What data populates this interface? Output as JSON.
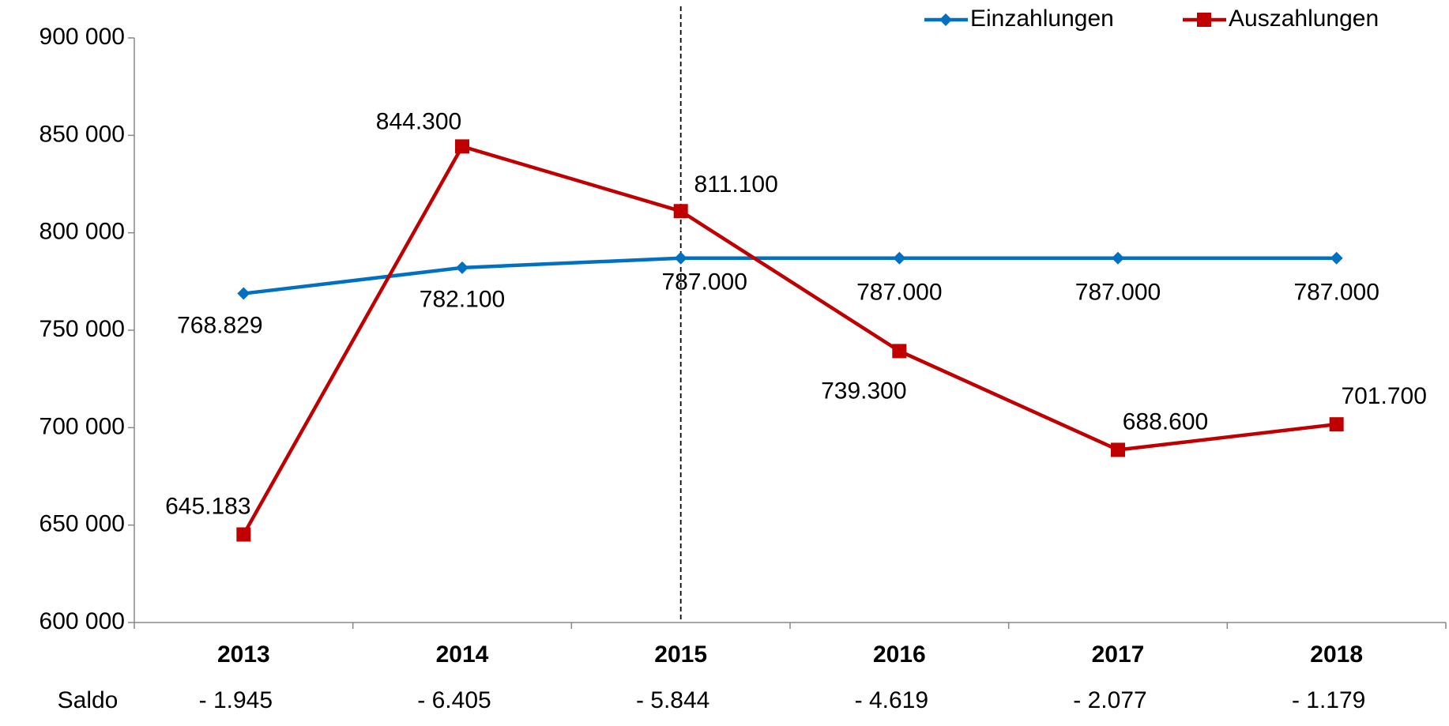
{
  "chart_data": {
    "type": "line",
    "categories": [
      "2013",
      "2014",
      "2015",
      "2016",
      "2017",
      "2018"
    ],
    "series": [
      {
        "name": "Einzahlungen",
        "color": "#0070c0",
        "marker": "diamond",
        "values": [
          768829,
          782100,
          787000,
          787000,
          787000,
          787000
        ],
        "value_labels": [
          "768.829",
          "782.100",
          "787.000",
          "787.000",
          "787.000",
          "787.000"
        ]
      },
      {
        "name": "Auszahlungen",
        "color": "#c00000",
        "marker": "square",
        "values": [
          645183,
          844300,
          811100,
          739300,
          688600,
          701700
        ],
        "value_labels": [
          "645.183",
          "844.300",
          "811.100",
          "739.300",
          "688.600",
          "701.700"
        ]
      }
    ],
    "ylim": [
      600000,
      900000
    ],
    "yticks": [
      {
        "value": 600000,
        "label": "600 000"
      },
      {
        "value": 650000,
        "label": "650 000"
      },
      {
        "value": 700000,
        "label": "700 000"
      },
      {
        "value": 750000,
        "label": "750 000"
      },
      {
        "value": 800000,
        "label": "800 000"
      },
      {
        "value": 850000,
        "label": "850 000"
      },
      {
        "value": 900000,
        "label": "900 000"
      }
    ],
    "reference_category": "2015",
    "legend": "top-right",
    "saldo": {
      "label": "Saldo",
      "values": [
        -1945,
        -6405,
        -5844,
        -4619,
        -2077,
        -1179
      ],
      "value_labels": [
        "- 1.945",
        "- 6.405",
        "- 5.844",
        "- 4.619",
        "- 2.077",
        "- 1.179"
      ]
    }
  }
}
